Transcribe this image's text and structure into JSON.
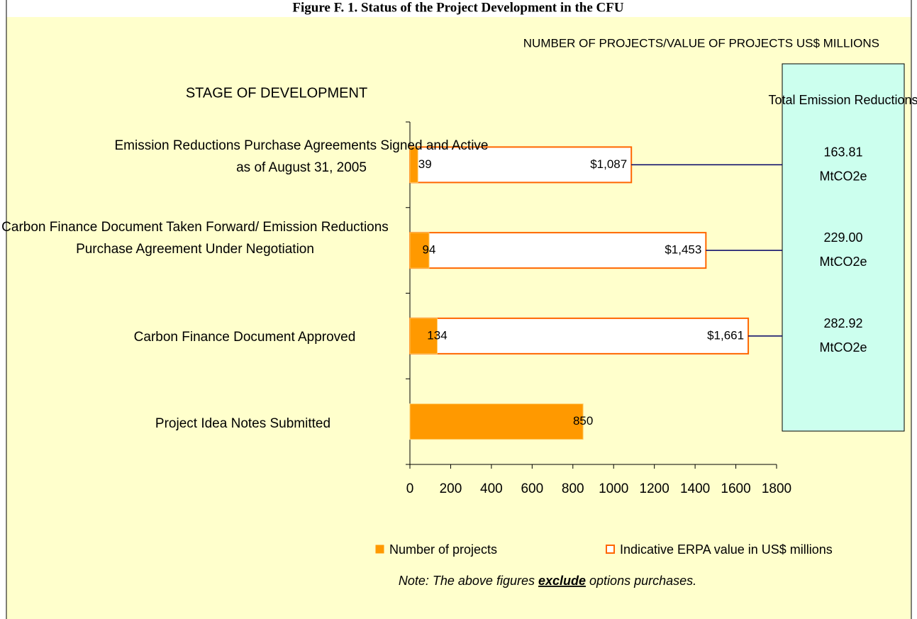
{
  "chart_data": {
    "type": "hbar",
    "title": "Figure F. 1.  Status of the Project Development in the CFU",
    "x_axis_label": "NUMBER OF PROJECTS/VALUE OF PROJECTS US$ MILLIONS",
    "y_axis_label": "STAGE OF DEVELOPMENT",
    "categories": [
      "Emission Reductions Purchase Agreements Signed and Active as of August 31, 2005",
      "Carbon Finance Document Taken Forward/ Emission Reductions Purchase Agreement Under Negotiation",
      "Carbon Finance Document Approved",
      "Project Idea Notes Submitted"
    ],
    "series": [
      {
        "name": "Number of projects",
        "color": "#ff9900",
        "values": [
          39,
          94,
          134,
          850
        ]
      },
      {
        "name": "Indicative ERPA value in US$ millions",
        "color": "#ff6600",
        "values": [
          1087,
          1453,
          1661,
          null
        ],
        "value_labels": [
          "$1,087",
          "$1,453",
          "$1,661",
          null
        ]
      }
    ],
    "xlim": [
      0,
      1800
    ],
    "xticks": [
      0,
      200,
      400,
      600,
      800,
      1000,
      1200,
      1400,
      1600,
      1800
    ],
    "side_box": {
      "title": "Total Emission Reductions",
      "items": [
        "163.81 MtCO2e",
        "229.00 MtCO2e",
        "282.92 MtCO2e"
      ]
    },
    "note": {
      "before": "Note:  The above figures ",
      "emphasis": "exclude",
      "after": " options purchases."
    }
  }
}
